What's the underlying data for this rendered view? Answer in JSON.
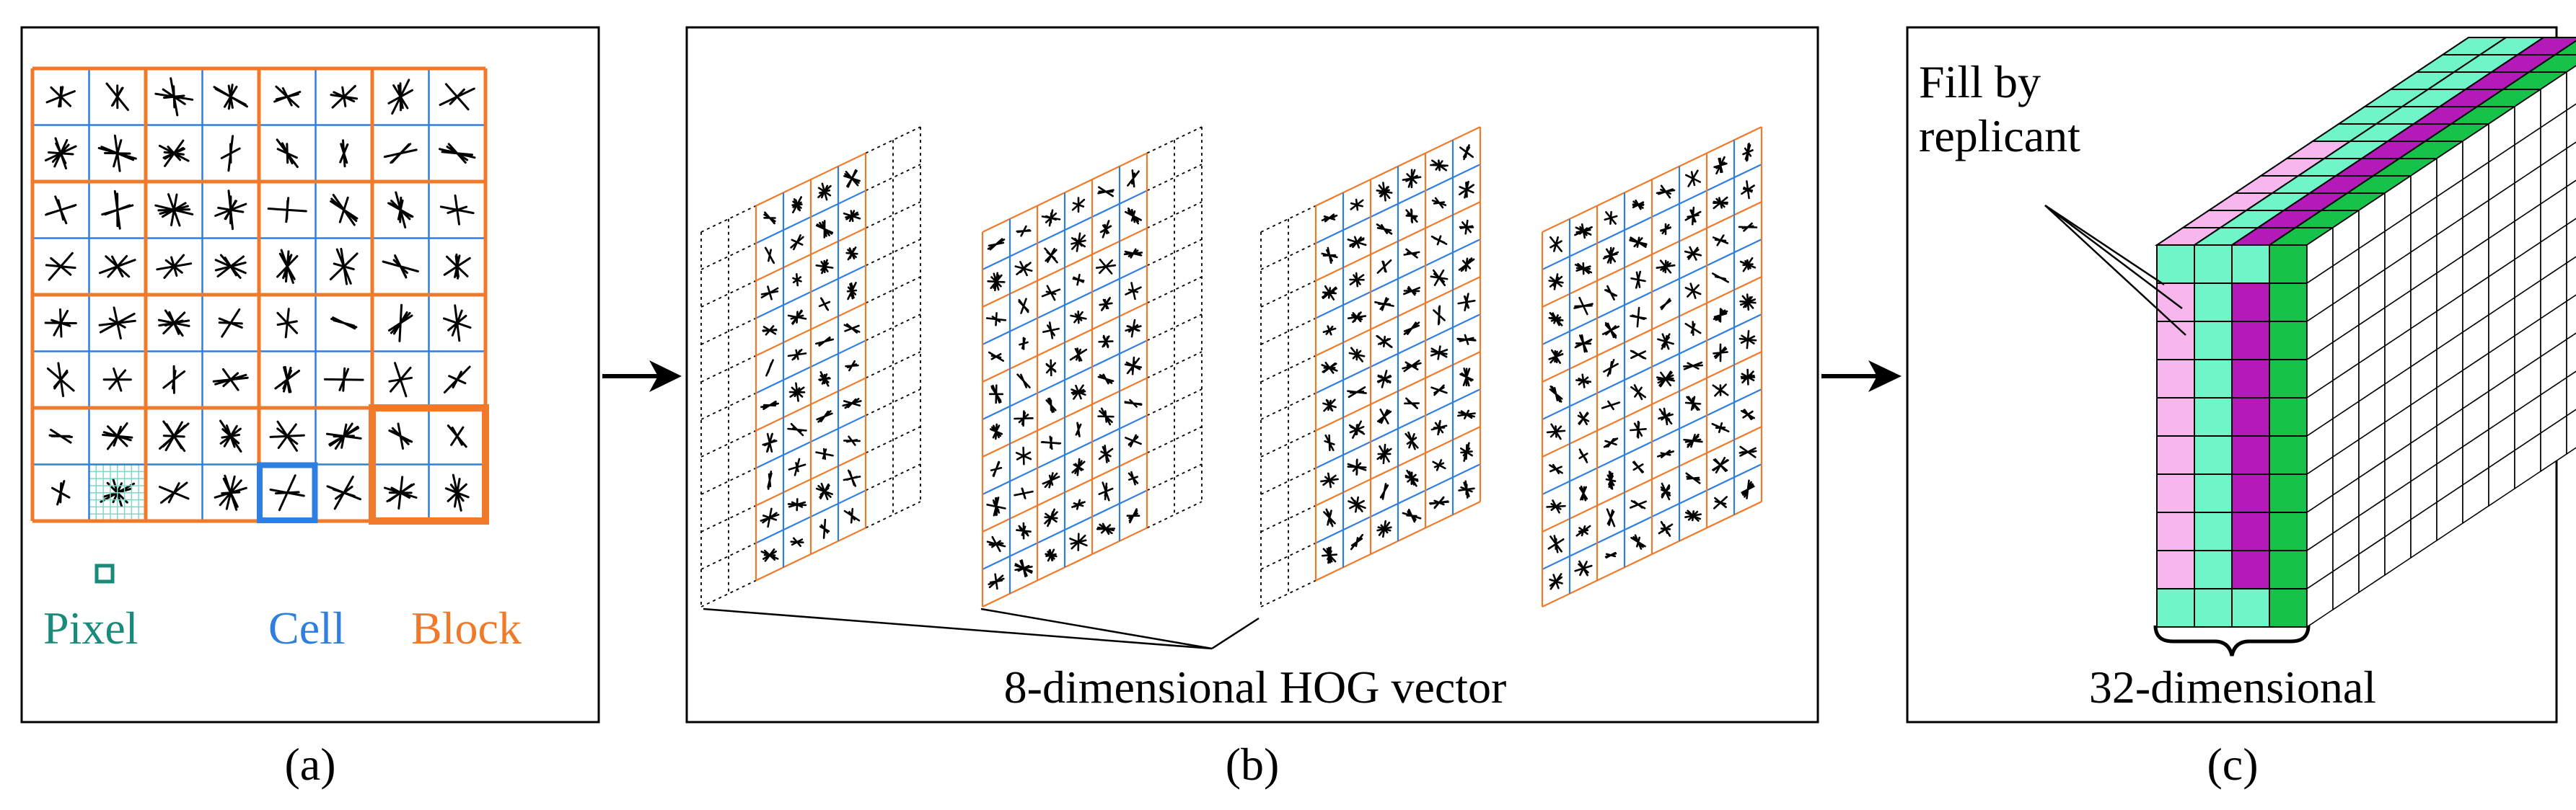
{
  "panel_a": {
    "legend_pixel": "Pixel",
    "legend_cell": "Cell",
    "legend_block": "Block",
    "caption": "(a)"
  },
  "panel_b": {
    "label": "8-dimensional HOG vector",
    "caption": "(b)"
  },
  "panel_c": {
    "fill_line1": "Fill by",
    "fill_line2": "replicant",
    "label": "32-dimensional",
    "caption": "(c)"
  },
  "colors": {
    "pixel": "#1a8a7a",
    "cell": "#2f7fe0",
    "block": "#f07a2a",
    "mint": "#6ff5c8",
    "pink": "#f7b7ec",
    "magenta": "#b31ab8",
    "green": "#17c24a"
  }
}
